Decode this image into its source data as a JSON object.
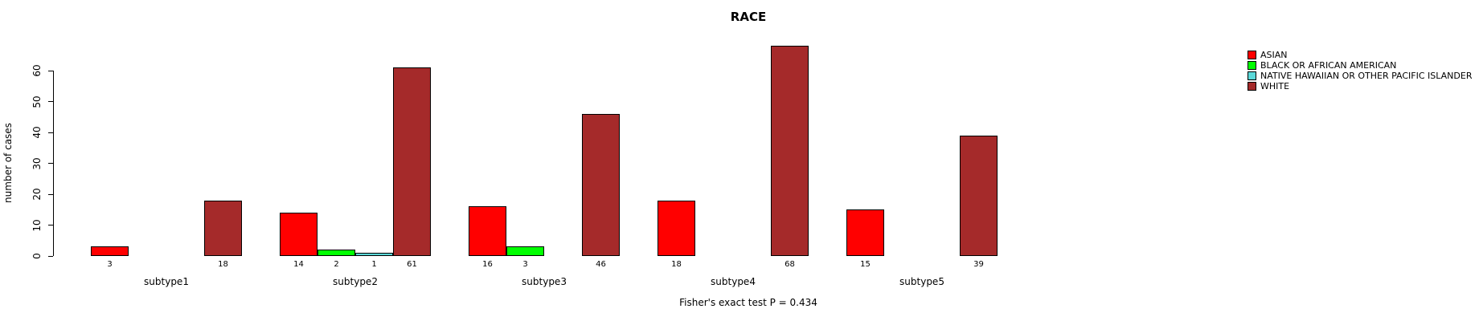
{
  "chart_data": {
    "type": "bar",
    "title": "RACE",
    "ylabel": "number of cases",
    "xlabel": "",
    "ylim": [
      0,
      60
    ],
    "yticks": [
      0,
      10,
      20,
      30,
      40,
      50,
      60
    ],
    "grid": false,
    "legend_position": "top-right",
    "categories": [
      "subtype1",
      "subtype2",
      "subtype3",
      "subtype4",
      "subtype5"
    ],
    "series": [
      {
        "name": "ASIAN",
        "color": "#ff0000",
        "values": [
          3,
          14,
          16,
          18,
          15
        ]
      },
      {
        "name": "BLACK OR AFRICAN AMERICAN",
        "color": "#00ff00",
        "values": [
          0,
          2,
          3,
          0,
          0
        ]
      },
      {
        "name": "NATIVE HAWAIIAN OR OTHER PACIFIC ISLANDER",
        "color": "#5bd8d8",
        "values": [
          0,
          1,
          0,
          0,
          0
        ]
      },
      {
        "name": "WHITE",
        "color": "#a52a2a",
        "values": [
          18,
          61,
          46,
          68,
          39
        ]
      }
    ],
    "annotation": "Fisher's exact test P = 0.434"
  }
}
